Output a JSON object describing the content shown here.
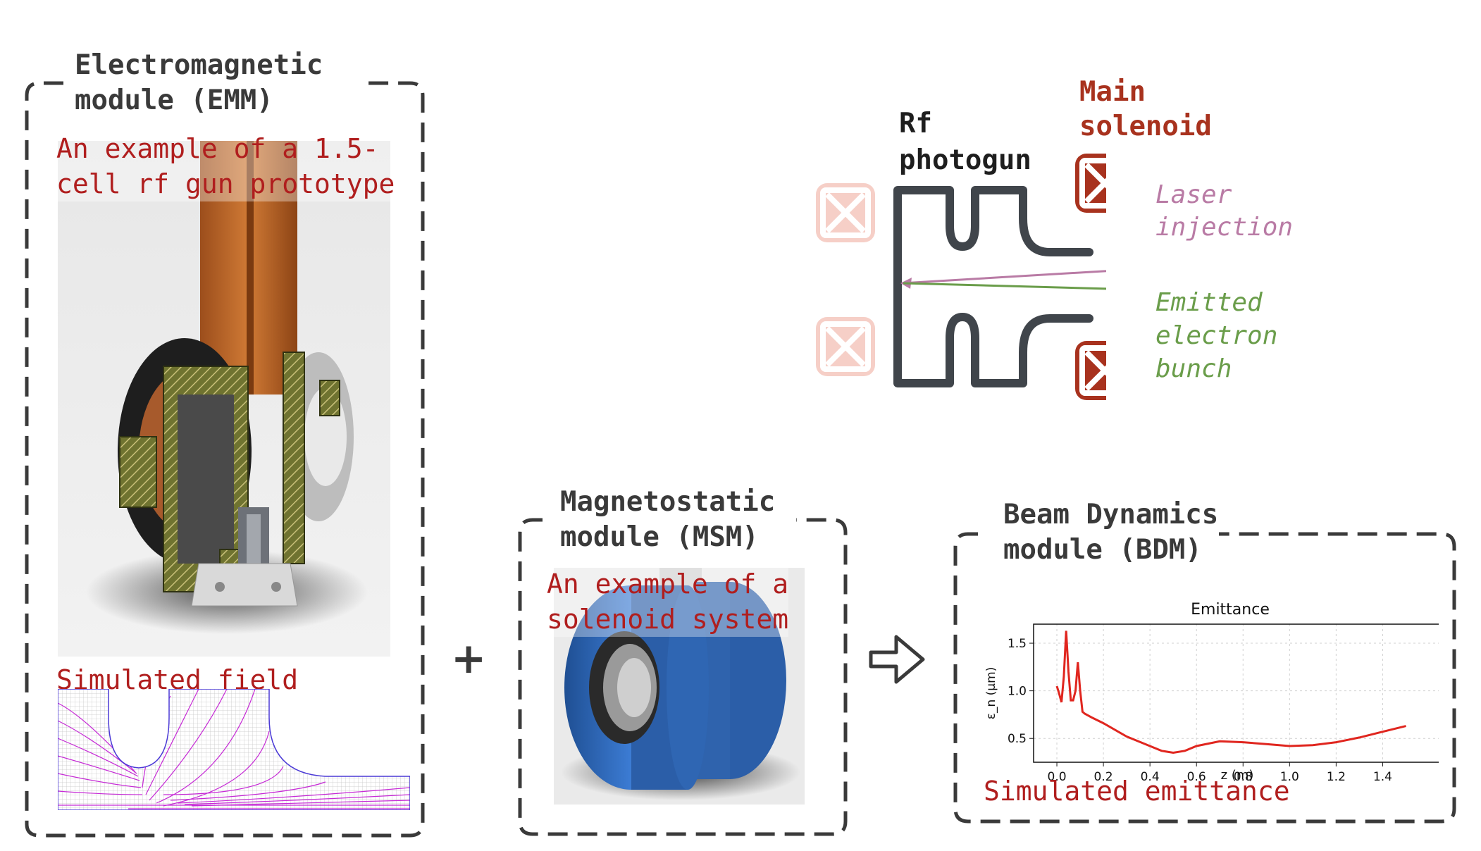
{
  "emm": {
    "title": "Electromagnetic\nmodule (EMM)",
    "example_label": "An example of a 1.5-\ncell rf gun prototype",
    "field_label": "Simulated field"
  },
  "plus_sign": "+",
  "msm": {
    "title": "Magnetostatic\nmodule (MSM)",
    "example_label": "An example of a\nsolenoid system"
  },
  "bdm": {
    "title": "Beam Dynamics\nmodule (BDM)",
    "emittance_label": "Simulated emittance"
  },
  "schematic": {
    "rf_photogun_label": "Rf\nphotogun",
    "main_solenoid_label": "Main\nsolenoid",
    "laser_label": "Laser\ninjection",
    "bunch_label": "Emitted\nelectron\nbunch"
  },
  "colors": {
    "frame": "#3a3a3a",
    "red_text": "#b01e1e",
    "solenoid": "#a8321e",
    "solenoid_faded": "#f3c6bd",
    "gun": "#40454b",
    "laser": "#b97ba5",
    "bunch": "#6a9d4a",
    "curve": "#e0261f"
  },
  "chart_data": {
    "type": "line",
    "title": "Emittance",
    "xlabel": "z (m)",
    "ylabel": "ε_n (μm)",
    "xlim": [
      -0.1,
      1.65
    ],
    "ylim": [
      0.25,
      1.7
    ],
    "xticks": [
      0.0,
      0.2,
      0.4,
      0.6,
      0.8,
      1.0,
      1.2,
      1.4
    ],
    "xtick_labels": [
      "0.0",
      "0.2",
      "0.4",
      "0.6",
      "0.8",
      "1.0",
      "1.2",
      "1.4"
    ],
    "yticks": [
      0.5,
      1.0,
      1.5
    ],
    "ytick_labels": [
      "0.5",
      "1.0",
      "1.5"
    ],
    "grid": true,
    "series": [
      {
        "x": [
          0.0,
          0.01,
          0.02,
          0.03,
          0.04,
          0.05,
          0.06,
          0.07,
          0.08,
          0.09,
          0.1,
          0.11,
          0.12,
          0.15,
          0.2,
          0.3,
          0.4,
          0.45,
          0.5,
          0.55,
          0.6,
          0.7,
          0.8,
          0.9,
          1.0,
          1.1,
          1.2,
          1.3,
          1.4,
          1.5
        ],
        "y": [
          1.05,
          0.97,
          0.88,
          1.15,
          1.63,
          1.2,
          0.9,
          0.9,
          1.0,
          1.3,
          1.0,
          0.78,
          0.76,
          0.72,
          0.66,
          0.52,
          0.42,
          0.37,
          0.35,
          0.37,
          0.42,
          0.47,
          0.46,
          0.44,
          0.42,
          0.43,
          0.46,
          0.51,
          0.57,
          0.63
        ]
      }
    ]
  }
}
